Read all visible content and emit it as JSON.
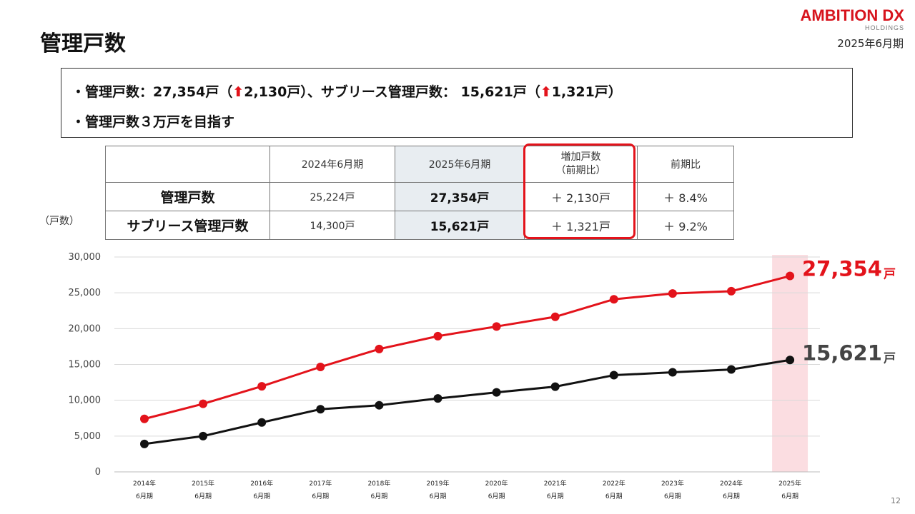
{
  "page": {
    "title": "管理戸数",
    "period": "2025年6月期",
    "page_number": "12"
  },
  "logo": {
    "main": "AMBITION DX",
    "sub": "HOLDINGS"
  },
  "summary": {
    "line1_a": "・管理戸数：27,354戸（",
    "line1_arrow1": "⬆",
    "line1_b": "2,130戸）、サブリース管理戸数： 15,621戸（",
    "line1_arrow2": "⬆",
    "line1_c": "1,321戸）",
    "line2": "・管理戸数３万戸を目指す"
  },
  "table": {
    "headers": [
      "",
      "2024年6月期",
      "2025年6月期",
      "増加戸数",
      "前期比"
    ],
    "header_sub": "（前期比）",
    "rows": [
      {
        "label": "管理戸数",
        "prev": "25,224戸",
        "curr": "27,354戸",
        "inc": "＋ 2,130戸",
        "ratio": "＋ 8.4%"
      },
      {
        "label": "サブリース管理戸数",
        "prev": "14,300戸",
        "curr": "15,621戸",
        "inc": "＋ 1,321戸",
        "ratio": "＋ 9.2%"
      }
    ]
  },
  "colors": {
    "accent_red": "#e3131b",
    "series_black": "#111111",
    "highlight": "#fbdde1"
  },
  "chart_data": {
    "type": "line",
    "ylabel": "（戸数）",
    "ylim": [
      0,
      30000
    ],
    "ytick_values": [
      0,
      5000,
      10000,
      15000,
      20000,
      25000,
      30000
    ],
    "yticks": [
      "0",
      "5,000",
      "10,000",
      "15,000",
      "20,000",
      "25,000",
      "30,000"
    ],
    "categories": [
      [
        "2014年",
        "6月期"
      ],
      [
        "2015年",
        "6月期"
      ],
      [
        "2016年",
        "6月期"
      ],
      [
        "2017年",
        "6月期"
      ],
      [
        "2018年",
        "6月期"
      ],
      [
        "2019年",
        "6月期"
      ],
      [
        "2020年",
        "6月期"
      ],
      [
        "2021年",
        "6月期"
      ],
      [
        "2022年",
        "6月期"
      ],
      [
        "2023年",
        "6月期"
      ],
      [
        "2024年",
        "6月期"
      ],
      [
        "2025年",
        "6月期"
      ]
    ],
    "highlight_category": 11,
    "grid": true,
    "series": [
      {
        "color": "#e3131b",
        "values": [
          7400,
          9500,
          11950,
          14650,
          17150,
          18950,
          20300,
          21650,
          24100,
          24900,
          25224,
          27354
        ],
        "end_label": "27,354",
        "end_unit": "戸"
      },
      {
        "color": "#111111",
        "values": [
          3900,
          5000,
          6900,
          8750,
          9300,
          10250,
          11100,
          11900,
          13500,
          13900,
          14300,
          15621
        ],
        "end_label": "15,621",
        "end_unit": "戸"
      }
    ]
  }
}
